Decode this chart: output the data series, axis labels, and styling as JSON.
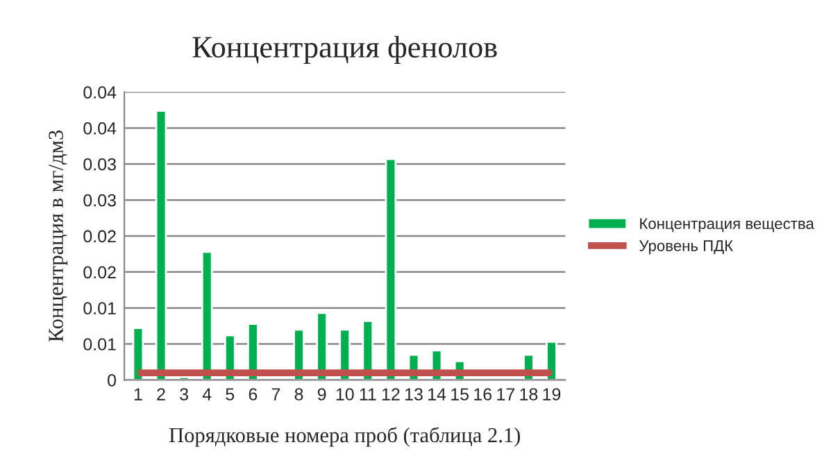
{
  "chart_data": {
    "type": "bar",
    "title": "Концентрация фенолов",
    "xlabel": "Порядковые номера проб (таблица 2.1)",
    "ylabel": "Концентрация в мг/дм3",
    "categories": [
      "1",
      "2",
      "3",
      "4",
      "5",
      "6",
      "7",
      "8",
      "9",
      "10",
      "11",
      "12",
      "13",
      "14",
      "15",
      "16",
      "17",
      "18",
      "19"
    ],
    "series": [
      {
        "name": "Концентрация вещества",
        "color": "#00b050",
        "values": [
          0.0072,
          0.0374,
          0.0004,
          0.0178,
          0.0062,
          0.0078,
          null,
          0.007,
          0.0093,
          0.007,
          0.0082,
          0.0307,
          0.0035,
          0.0041,
          0.0026,
          null,
          null,
          0.0035,
          0.0053
        ]
      },
      {
        "name": "Уровень ПДК",
        "type": "line",
        "color": "#c0504d",
        "values": [
          0.001,
          0.001,
          0.001,
          0.001,
          0.001,
          0.001,
          0.001,
          0.001,
          0.001,
          0.001,
          0.001,
          0.001,
          0.001,
          0.001,
          0.001,
          0.001,
          0.001,
          0.001,
          0.001
        ]
      }
    ],
    "ylim": [
      0,
      0.04
    ],
    "yticks": [
      0,
      {
        "value": 0.005,
        "label": "0.01"
      },
      0.01,
      {
        "value": 0.015,
        "label": "0.02"
      },
      0.02,
      {
        "value": 0.025,
        "label": "0.03"
      },
      0.03,
      {
        "value": 0.035,
        "label": "0.04"
      },
      0.04
    ],
    "grid": "y",
    "legend": "right"
  }
}
